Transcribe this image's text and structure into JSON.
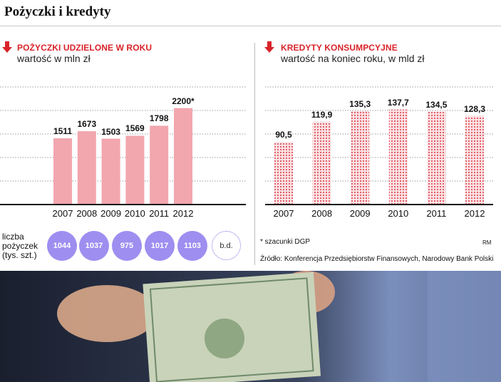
{
  "title": "Pożyczki i kredyty",
  "colors": {
    "accent": "#d8232a",
    "bar_pink": "#f2a6ae",
    "bar_dot": "#e0525c",
    "bubble": "#9e8ef0"
  },
  "chart_data": [
    {
      "type": "bar",
      "title": "POŻYCZKI UDZIELONE W ROKU",
      "subtitle": "wartość w mln zł",
      "categories": [
        "2007",
        "2008",
        "2009",
        "2010",
        "2011",
        "2012"
      ],
      "values": [
        1511,
        1673,
        1503,
        1569,
        1798,
        2200
      ],
      "value_labels": [
        "1511",
        "1673",
        "1503",
        "1569",
        "1798",
        "2200*"
      ],
      "ylim": [
        0,
        2520
      ],
      "grid": true
    },
    {
      "type": "bar",
      "title": "KREDYTY KONSUMPCYJNE",
      "subtitle": "wartość na koniec roku, w mld zł",
      "categories": [
        "2007",
        "2008",
        "2009",
        "2010",
        "2011",
        "2012"
      ],
      "values": [
        90.5,
        119.9,
        135.3,
        137.7,
        134.5,
        128.3
      ],
      "value_labels": [
        "90,5",
        "119,9",
        "135,3",
        "137,7",
        "134,5",
        "128,3"
      ],
      "ylim": [
        0,
        160
      ],
      "grid": true
    }
  ],
  "loans_count": {
    "label_line1": "liczba",
    "label_line2": "pożyczek",
    "label_line3": "(tys. szt.)",
    "values": [
      "1044",
      "1037",
      "975",
      "1017",
      "1103",
      "b.d."
    ]
  },
  "notes": {
    "footnote": "* szacunki DGP",
    "author": "RM",
    "source": "Źródło: Konferencja Przedsiębiorstw Finansowych, Narodowy Bank Polski"
  }
}
